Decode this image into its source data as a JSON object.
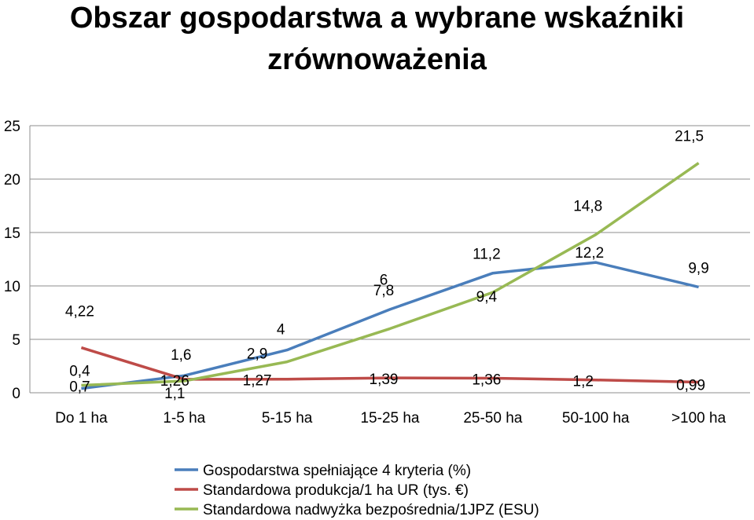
{
  "chart_data": {
    "type": "line",
    "title_line1": "Obszar gospodarstwa a wybrane wskaźniki",
    "title_line2": "zrównoważenia",
    "categories": [
      "Do 1 ha",
      "1-5 ha",
      "5-15 ha",
      "15-25 ha",
      "25-50 ha",
      "50-100 ha",
      ">100 ha"
    ],
    "ylim": [
      0,
      25
    ],
    "yticks": [
      "0",
      "5",
      "10",
      "15",
      "20",
      "25"
    ],
    "grid": true,
    "legend_position": "bottom",
    "series": [
      {
        "name": "Gospodarstwa spełniające 4 kryteria (%)",
        "color": "#4a7ebb",
        "values": [
          0.4,
          1.6,
          4,
          7.8,
          11.2,
          12.2,
          9.9
        ],
        "labels": [
          "0,4",
          "1,6",
          "4",
          "7,8",
          "11,2",
          "12,2",
          "9,9"
        ]
      },
      {
        "name": "Standardowa produkcja/1 ha UR (tys. €)",
        "color": "#be4b48",
        "values": [
          4.22,
          1.26,
          1.27,
          1.39,
          1.36,
          1.2,
          0.99
        ],
        "labels": [
          "4,22",
          "1,26",
          "1,27",
          "1,39",
          "1,36",
          "1,2",
          "0,99"
        ]
      },
      {
        "name": "Standardowa nadwyżka bezpośrednia/1JPZ (ESU)",
        "color": "#98b954",
        "values": [
          0.7,
          1.1,
          2.9,
          6,
          9.4,
          14.8,
          21.5
        ],
        "labels": [
          "0,7",
          "1,1",
          "2,9",
          "6",
          "9,4",
          "14,8",
          "21,5"
        ]
      }
    ]
  }
}
